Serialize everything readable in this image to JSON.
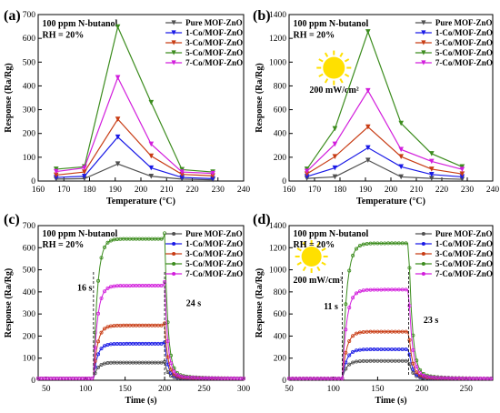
{
  "colors": {
    "pure": "#505050",
    "co1": "#1a1ae6",
    "co3": "#c83c14",
    "co5": "#3c8c1e",
    "co7": "#d21edc",
    "sun": "#ffe000"
  },
  "chart_data": [
    {
      "id": "a",
      "letter": "(a)",
      "type": "line",
      "title": "",
      "xlabel": "Temperature (°C)",
      "ylabel": "Response (Ra/Rg)",
      "xlim": [
        160,
        240
      ],
      "ylim": [
        0,
        700
      ],
      "xticks": [
        160,
        170,
        180,
        190,
        200,
        210,
        220,
        230,
        240
      ],
      "yticks": [
        0,
        100,
        200,
        300,
        400,
        500,
        600,
        700
      ],
      "annotations": [
        "100 ppm N-butanol",
        "RH = 20%"
      ],
      "legend_position": "top-right",
      "x": [
        167,
        178,
        191,
        204,
        216,
        228
      ],
      "series": [
        {
          "name": "Pure MOF-ZnO",
          "key": "pure",
          "marker": "tri-down",
          "values": [
            8,
            10,
            72,
            20,
            8,
            5
          ]
        },
        {
          "name": "1-Co/MOF-ZnO",
          "key": "co1",
          "marker": "tri-down",
          "values": [
            15,
            20,
            185,
            55,
            15,
            10
          ]
        },
        {
          "name": "3-Co/MOF-ZnO",
          "key": "co3",
          "marker": "tri-down",
          "values": [
            25,
            38,
            260,
            105,
            28,
            22
          ]
        },
        {
          "name": "5-Co/MOF-ZnO",
          "key": "co5",
          "marker": "tri-down",
          "values": [
            50,
            60,
            648,
            330,
            48,
            38
          ]
        },
        {
          "name": "7-Co/MOF-ZnO",
          "key": "co7",
          "marker": "tri-down",
          "values": [
            40,
            55,
            435,
            155,
            38,
            32
          ]
        }
      ]
    },
    {
      "id": "b",
      "letter": "(b)",
      "type": "line",
      "title": "",
      "xlabel": "Temperature (°C)",
      "ylabel": "Response (Ra/Rg)",
      "xlim": [
        160,
        240
      ],
      "ylim": [
        0,
        1400
      ],
      "xticks": [
        160,
        170,
        180,
        190,
        200,
        210,
        220,
        230,
        240
      ],
      "yticks": [
        0,
        200,
        400,
        600,
        800,
        1000,
        1200,
        1400
      ],
      "annotations": [
        "100 ppm N-butanol",
        "RH = 20%",
        "200 mW/cm²"
      ],
      "legend_position": "top-right",
      "x": [
        167,
        178,
        191,
        204,
        216,
        228
      ],
      "series": [
        {
          "name": "Pure MOF-ZnO",
          "key": "pure",
          "marker": "tri-down",
          "values": [
            22,
            35,
            175,
            35,
            22,
            15
          ]
        },
        {
          "name": "1-Co/MOF-ZnO",
          "key": "co1",
          "marker": "tri-down",
          "values": [
            38,
            110,
            280,
            120,
            55,
            35
          ]
        },
        {
          "name": "3-Co/MOF-ZnO",
          "key": "co3",
          "marker": "tri-down",
          "values": [
            60,
            205,
            455,
            205,
            100,
            60
          ]
        },
        {
          "name": "5-Co/MOF-ZnO",
          "key": "co5",
          "marker": "tri-down",
          "values": [
            100,
            440,
            1255,
            485,
            230,
            120
          ]
        },
        {
          "name": "7-Co/MOF-ZnO",
          "key": "co7",
          "marker": "tri-down",
          "values": [
            82,
            310,
            760,
            265,
            165,
            98
          ]
        }
      ]
    },
    {
      "id": "c",
      "letter": "(c)",
      "type": "line",
      "title": "",
      "xlabel": "Time (s)",
      "ylabel": "Response (Ra/Rg)",
      "xlim": [
        40,
        300
      ],
      "ylim": [
        0,
        700
      ],
      "xticks": [
        50,
        100,
        150,
        200,
        250,
        300
      ],
      "yticks": [
        0,
        100,
        200,
        300,
        400,
        500,
        600,
        700
      ],
      "annotations": [
        "100 ppm N-butanol",
        "RH = 20%",
        "16 s",
        "24 s"
      ],
      "legend_position": "top-right",
      "on_time": 110,
      "off_time": 200,
      "time_end": 300,
      "series": [
        {
          "name": "Pure MOF-ZnO",
          "key": "pure",
          "marker": "circle",
          "baseline": 8,
          "plateau": 80
        },
        {
          "name": "1-Co/MOF-ZnO",
          "key": "co1",
          "marker": "circle",
          "baseline": 8,
          "plateau": 165
        },
        {
          "name": "3-Co/MOF-ZnO",
          "key": "co3",
          "marker": "circle",
          "baseline": 8,
          "plateau": 248
        },
        {
          "name": "5-Co/MOF-ZnO",
          "key": "co5",
          "marker": "circle",
          "baseline": 8,
          "plateau": 640
        },
        {
          "name": "7-Co/MOF-ZnO",
          "key": "co7",
          "marker": "circle",
          "baseline": 8,
          "plateau": 428
        }
      ]
    },
    {
      "id": "d",
      "letter": "(d)",
      "type": "line",
      "title": "",
      "xlabel": "Time (s)",
      "ylabel": "Response (Ra/Rg)",
      "xlim": [
        50,
        280
      ],
      "ylim": [
        0,
        1400
      ],
      "xticks": [
        50,
        100,
        150,
        200,
        250
      ],
      "yticks": [
        0,
        200,
        400,
        600,
        800,
        1000,
        1200,
        1400
      ],
      "annotations": [
        "100 ppm N-butanol",
        "RH = 20%",
        "200 mW/cm²",
        "11 s",
        "23 s"
      ],
      "legend_position": "top-right",
      "on_time": 110,
      "off_time": 185,
      "time_end": 280,
      "series": [
        {
          "name": "Pure MOF-ZnO",
          "key": "pure",
          "marker": "circle",
          "baseline": 15,
          "plateau": 175
        },
        {
          "name": "1-Co/MOF-ZnO",
          "key": "co1",
          "marker": "circle",
          "baseline": 15,
          "plateau": 280
        },
        {
          "name": "3-Co/MOF-ZnO",
          "key": "co3",
          "marker": "circle",
          "baseline": 15,
          "plateau": 440
        },
        {
          "name": "5-Co/MOF-ZnO",
          "key": "co5",
          "marker": "circle",
          "baseline": 15,
          "plateau": 1240
        },
        {
          "name": "7-Co/MOF-ZnO",
          "key": "co7",
          "marker": "circle",
          "baseline": 15,
          "plateau": 820
        }
      ]
    }
  ]
}
